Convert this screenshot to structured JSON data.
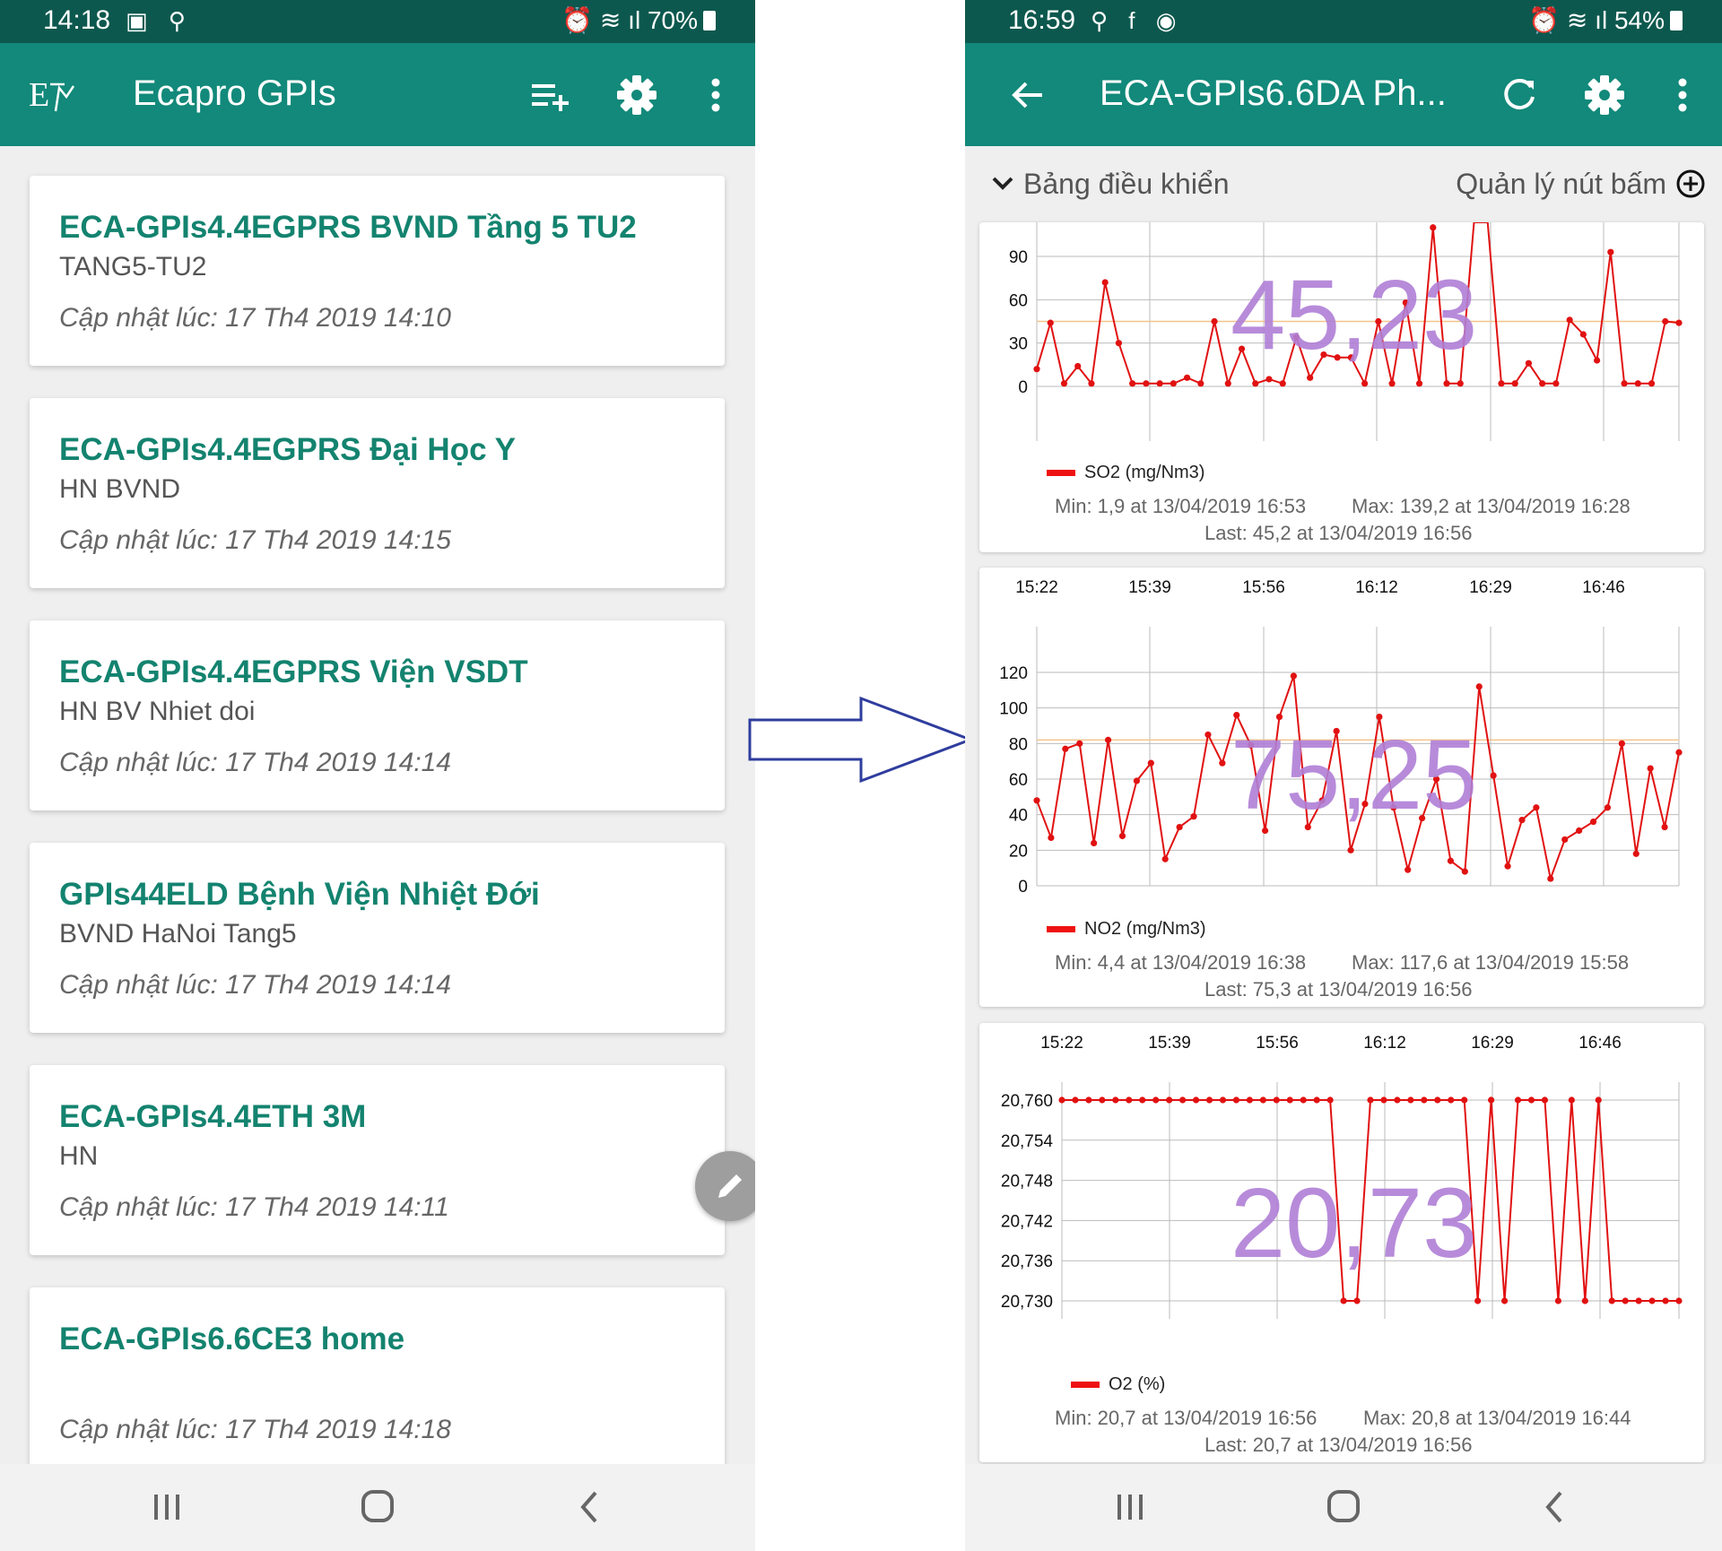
{
  "left": {
    "status": {
      "time": "14:18",
      "battery": "70%"
    },
    "app_title": "Ecapro GPIs",
    "stations": [
      {
        "name": "ECA-GPIs4.4EGPRS BVND Tầng 5 TU2",
        "location": "TANG5-TU2",
        "updated": "Cập nhật lúc: 17 Th4 2019 14:10"
      },
      {
        "name": "ECA-GPIs4.4EGPRS Đại Học Y",
        "location": "HN BVND",
        "updated": "Cập nhật lúc: 17 Th4 2019 14:15"
      },
      {
        "name": "ECA-GPIs4.4EGPRS Viện VSDT",
        "location": "HN BV Nhiet doi",
        "updated": "Cập nhật lúc: 17 Th4 2019 14:14"
      },
      {
        "name": "GPIs44ELD Bệnh Viện Nhiệt Đới",
        "location": "BVND HaNoi Tang5",
        "updated": "Cập nhật lúc: 17 Th4 2019 14:14"
      },
      {
        "name": "ECA-GPIs4.4ETH 3M",
        "location": "HN",
        "updated": "Cập nhật lúc: 17 Th4 2019 14:11"
      },
      {
        "name": "ECA-GPIs6.6CE3 home",
        "location": "",
        "updated": "Cập nhật lúc: 17 Th4 2019 14:18"
      }
    ]
  },
  "right": {
    "status": {
      "time": "16:59",
      "battery": "54%"
    },
    "app_title": "ECA-GPIs6.6DA Ph...",
    "dashboard_label": "Bảng điều khiển",
    "manage_buttons_label": "Quản lý nút bấm"
  },
  "colors": {
    "status_bar": "#0d584e",
    "app_bar": "#12897a",
    "card_title": "#13836f",
    "series": "#e11111",
    "big_value": "#b07fd6",
    "arrow": "#2f3d9e"
  },
  "icons": [
    "playlist-add-icon",
    "gear-icon",
    "more-vert-icon",
    "back-arrow-icon",
    "refresh-icon",
    "add-circle-icon",
    "edit-pencil-icon"
  ],
  "chart_data": [
    {
      "type": "line",
      "current_value": "45,23",
      "series": [
        {
          "name": "SO2 (mg/Nm3)",
          "values": [
            12,
            44,
            2,
            14,
            2,
            72,
            30,
            2,
            2,
            2,
            2,
            6,
            2,
            45,
            2,
            26,
            2,
            5,
            2,
            34,
            6,
            22,
            20,
            20,
            2,
            45,
            2,
            58,
            2,
            110,
            2,
            2,
            139,
            115,
            2,
            2,
            16,
            2,
            2,
            46,
            36,
            18,
            93,
            2,
            2,
            2,
            45,
            44
          ]
        }
      ],
      "yticks": [
        "0",
        "30",
        "60",
        "90"
      ],
      "ylim": [
        -10,
        105
      ],
      "reference_line": 45,
      "min_text": "Min: 1,9 at 13/04/2019 16:53",
      "max_text": "Max: 139,2 at 13/04/2019 16:28",
      "last_text": "Last: 45,2 at 13/04/2019 16:56"
    },
    {
      "type": "line",
      "current_value": "75,25",
      "x_labels": [
        "15:22",
        "15:39",
        "15:56",
        "16:12",
        "16:29",
        "16:46"
      ],
      "series": [
        {
          "name": "NO2 (mg/Nm3)",
          "values": [
            48,
            27,
            77,
            80,
            24,
            82,
            28,
            59,
            69,
            15,
            33,
            39,
            85,
            69,
            96,
            79,
            31,
            95,
            118,
            33,
            48,
            87,
            20,
            46,
            95,
            44,
            9,
            38,
            60,
            14,
            8,
            112,
            62,
            11,
            37,
            44,
            4,
            26,
            31,
            36,
            44,
            80,
            18,
            66,
            33,
            75
          ]
        }
      ],
      "yticks": [
        "0",
        "20",
        "40",
        "60",
        "80",
        "100",
        "120"
      ],
      "ylim": [
        0,
        120
      ],
      "reference_line": 82,
      "min_text": "Min: 4,4 at 13/04/2019 16:38",
      "max_text": "Max: 117,6 at 13/04/2019 15:58",
      "last_text": "Last: 75,3 at 13/04/2019 16:56"
    },
    {
      "type": "line",
      "current_value": "20,73",
      "x_labels": [
        "15:22",
        "15:39",
        "15:56",
        "16:12",
        "16:29",
        "16:46"
      ],
      "series": [
        {
          "name": "O2 (%)",
          "values": [
            20.76,
            20.76,
            20.76,
            20.76,
            20.76,
            20.76,
            20.76,
            20.76,
            20.76,
            20.76,
            20.76,
            20.76,
            20.76,
            20.76,
            20.76,
            20.76,
            20.76,
            20.76,
            20.76,
            20.76,
            20.76,
            20.73,
            20.73,
            20.76,
            20.76,
            20.76,
            20.76,
            20.76,
            20.76,
            20.76,
            20.76,
            20.73,
            20.76,
            20.73,
            20.76,
            20.76,
            20.76,
            20.73,
            20.76,
            20.73,
            20.76,
            20.73,
            20.73,
            20.73,
            20.73,
            20.73,
            20.73
          ]
        }
      ],
      "yticks": [
        "20,760",
        "20,754",
        "20,748",
        "20,742",
        "20,736",
        "20,730"
      ],
      "ylim": [
        20.73,
        20.76
      ],
      "min_text": "Min: 20,7 at 13/04/2019 16:56",
      "max_text": "Max: 20,8 at 13/04/2019 16:44",
      "last_text": "Last: 20,7 at 13/04/2019 16:56"
    }
  ]
}
